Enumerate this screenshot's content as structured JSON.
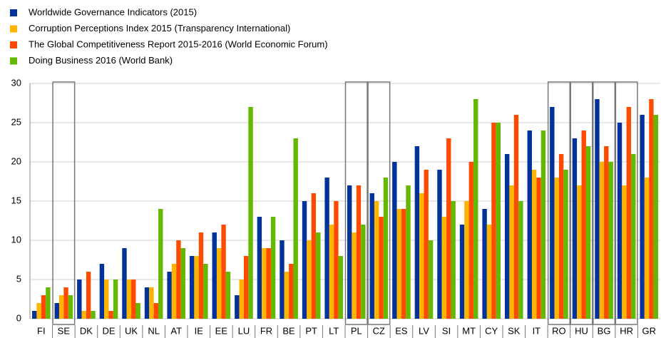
{
  "chart_data": {
    "type": "bar",
    "categories": [
      "FI",
      "SE",
      "DK",
      "DE",
      "UK",
      "NL",
      "AT",
      "IE",
      "EE",
      "LU",
      "FR",
      "BE",
      "PT",
      "LT",
      "PL",
      "CZ",
      "ES",
      "LV",
      "SI",
      "MT",
      "CY",
      "SK",
      "IT",
      "RO",
      "HU",
      "BG",
      "HR",
      "GR"
    ],
    "highlight": [
      false,
      true,
      false,
      false,
      false,
      false,
      false,
      false,
      false,
      false,
      false,
      false,
      false,
      false,
      true,
      true,
      false,
      false,
      false,
      false,
      false,
      false,
      false,
      true,
      true,
      true,
      true,
      false
    ],
    "series": [
      {
        "name": "Worldwide Governance Indicators (2015)",
        "color": "#003299",
        "values": [
          1,
          2,
          5,
          7,
          9,
          4,
          6,
          8,
          11,
          3,
          13,
          10,
          15,
          18,
          17,
          16,
          20,
          22,
          19,
          12,
          14,
          21,
          24,
          27,
          23,
          28,
          25,
          26
        ]
      },
      {
        "name": "Corruption Perceptions Index 2015 (Transparency International)",
        "color": "#ffb400",
        "values": [
          2,
          3,
          1,
          5,
          5,
          4,
          7,
          8,
          9,
          5,
          9,
          6,
          10,
          12,
          11,
          15,
          14,
          16,
          13,
          15,
          12,
          17,
          19,
          18,
          17,
          20,
          17,
          18
        ]
      },
      {
        "name": "The Global Competitiveness Report 2015-2016 (World Economic Forum)",
        "color": "#ff4b00",
        "values": [
          3,
          4,
          6,
          1,
          5,
          2,
          10,
          11,
          12,
          8,
          9,
          7,
          16,
          15,
          17,
          13,
          14,
          19,
          23,
          20,
          25,
          26,
          18,
          21,
          24,
          22,
          27,
          28
        ]
      },
      {
        "name": "Doing Business 2016 (World Bank)",
        "color": "#65b800",
        "values": [
          4,
          3,
          1,
          5,
          2,
          14,
          9,
          7,
          6,
          27,
          13,
          23,
          11,
          8,
          12,
          18,
          17,
          10,
          15,
          28,
          25,
          15,
          24,
          19,
          22,
          20,
          21,
          26
        ]
      }
    ],
    "ylim": [
      0,
      30
    ],
    "yticks": [
      0,
      5,
      10,
      15,
      20,
      25,
      30
    ],
    "grid": true
  }
}
